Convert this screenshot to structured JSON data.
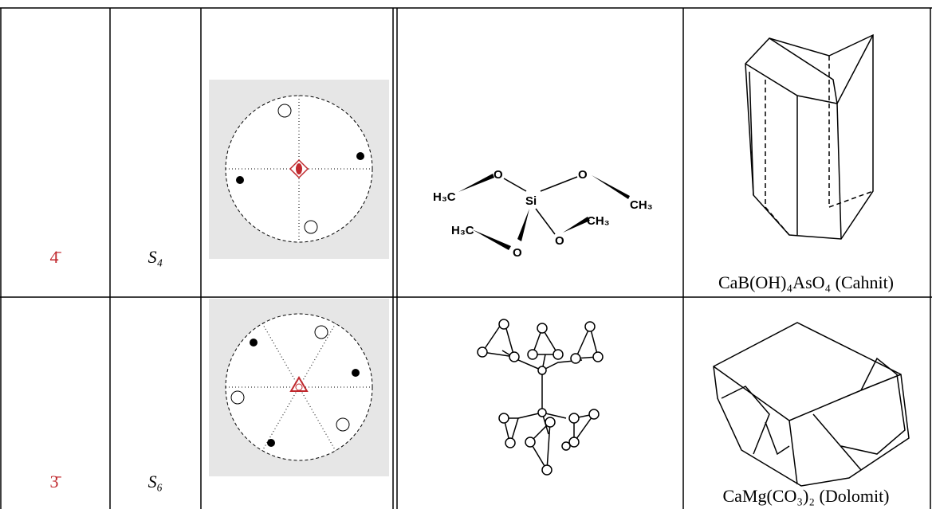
{
  "rows": [
    {
      "symbol": "4̄",
      "schoenflies": "S₄",
      "molecule_labels": [
        "H₃C",
        "O",
        "Si",
        "O",
        "CH₃",
        "H₃C",
        "O",
        "O",
        "CH₃"
      ],
      "mineral": "CaB(OH)₄AsO₄ (Cahnit)"
    },
    {
      "symbol": "3̄",
      "schoenflies": "S₆",
      "mineral": "CaMg(CO₃)₂ (Dolomit)"
    }
  ]
}
